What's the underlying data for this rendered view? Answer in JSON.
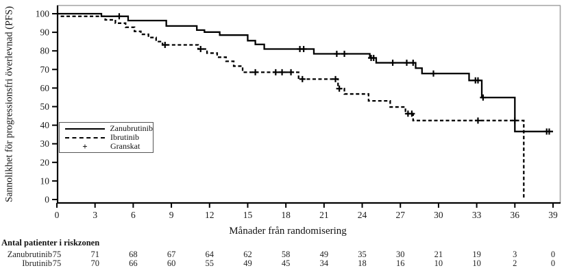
{
  "chart_data": {
    "type": "line",
    "subtype": "kaplan-meier-step",
    "title": "",
    "xlabel": "Månader från randomisering",
    "ylabel": "Sannolikhet för progressionsfri överlevnad (PFS)",
    "xlim": [
      0,
      39
    ],
    "ylim": [
      0,
      100
    ],
    "xticks": [
      0,
      3,
      6,
      9,
      12,
      15,
      18,
      21,
      24,
      27,
      30,
      33,
      36,
      39
    ],
    "yticks": [
      0,
      10,
      20,
      30,
      40,
      50,
      60,
      70,
      80,
      90,
      100
    ],
    "grid": false,
    "legend": {
      "position": "middle-left",
      "items": [
        {
          "label": "Zanubrutinib",
          "marker": "solid-line"
        },
        {
          "label": "Ibrutinib",
          "marker": "dashed-line"
        },
        {
          "label": "Granskat",
          "marker": "plus"
        }
      ]
    },
    "series": [
      {
        "name": "Zanubrutinib",
        "style": "solid",
        "color": "#000000",
        "steps": [
          [
            0,
            100
          ],
          [
            3.5,
            98.6
          ],
          [
            5.6,
            96.3
          ],
          [
            8.6,
            93.4
          ],
          [
            11.0,
            91.2
          ],
          [
            11.6,
            90.1
          ],
          [
            12.8,
            88.5
          ],
          [
            15.0,
            85.5
          ],
          [
            15.6,
            83.5
          ],
          [
            16.3,
            81.0
          ],
          [
            20.2,
            78.4
          ],
          [
            24.6,
            76.2
          ],
          [
            25.1,
            73.6
          ],
          [
            28.2,
            70.7
          ],
          [
            28.7,
            67.8
          ],
          [
            32.4,
            64.1
          ],
          [
            33.4,
            54.9
          ],
          [
            36.0,
            36.6
          ]
        ],
        "end_x": 39.0,
        "censors": [
          [
            4.9,
            98.6
          ],
          [
            19.1,
            81.0
          ],
          [
            19.4,
            81.0
          ],
          [
            22.0,
            78.4
          ],
          [
            22.6,
            78.4
          ],
          [
            24.7,
            76.2
          ],
          [
            24.9,
            76.2
          ],
          [
            26.4,
            73.6
          ],
          [
            27.5,
            73.6
          ],
          [
            28.0,
            73.6
          ],
          [
            29.6,
            67.8
          ],
          [
            32.9,
            64.1
          ],
          [
            33.1,
            64.1
          ],
          [
            33.5,
            54.9
          ],
          [
            38.5,
            36.6
          ],
          [
            38.7,
            36.6
          ]
        ]
      },
      {
        "name": "Ibrutinib",
        "style": "dashed",
        "color": "#000000",
        "steps": [
          [
            0.3,
            98.6
          ],
          [
            3.8,
            96.7
          ],
          [
            4.6,
            94.9
          ],
          [
            5.4,
            92.7
          ],
          [
            6.1,
            90.5
          ],
          [
            6.6,
            88.9
          ],
          [
            7.2,
            87.2
          ],
          [
            7.8,
            85.0
          ],
          [
            8.3,
            83.2
          ],
          [
            11.1,
            81.0
          ],
          [
            11.8,
            78.8
          ],
          [
            12.6,
            76.6
          ],
          [
            13.3,
            74.4
          ],
          [
            13.9,
            71.8
          ],
          [
            14.6,
            68.5
          ],
          [
            19.0,
            64.8
          ],
          [
            22.1,
            59.7
          ],
          [
            22.6,
            56.8
          ],
          [
            24.5,
            53.1
          ],
          [
            26.2,
            49.8
          ],
          [
            27.4,
            46.2
          ],
          [
            28.0,
            42.5
          ]
        ],
        "drop_to_zero_x": 36.7,
        "censors": [
          [
            8.5,
            83.2
          ],
          [
            11.3,
            81.0
          ],
          [
            15.6,
            68.5
          ],
          [
            17.2,
            68.5
          ],
          [
            17.7,
            68.5
          ],
          [
            18.4,
            68.5
          ],
          [
            19.3,
            64.8
          ],
          [
            21.9,
            64.8
          ],
          [
            22.2,
            59.7
          ],
          [
            27.6,
            46.2
          ],
          [
            27.9,
            46.2
          ],
          [
            33.1,
            42.5
          ],
          [
            36.0,
            42.5
          ]
        ]
      }
    ]
  },
  "risk_table": {
    "title": "Antal patienter i riskzonen",
    "months": [
      0,
      3,
      6,
      9,
      12,
      15,
      18,
      21,
      24,
      27,
      30,
      33,
      36,
      39
    ],
    "rows": [
      {
        "label": "Zanubrutinib",
        "values": [
          75,
          71,
          68,
          67,
          64,
          62,
          58,
          49,
          35,
          30,
          21,
          19,
          3,
          0
        ]
      },
      {
        "label": "Ibrutinib",
        "values": [
          75,
          70,
          66,
          60,
          55,
          49,
          45,
          34,
          18,
          16,
          10,
          10,
          2,
          0
        ]
      }
    ]
  },
  "colors": {
    "curve": "#000000",
    "frame_gray": "#a3a3a3",
    "text": "#1a1a1a"
  }
}
